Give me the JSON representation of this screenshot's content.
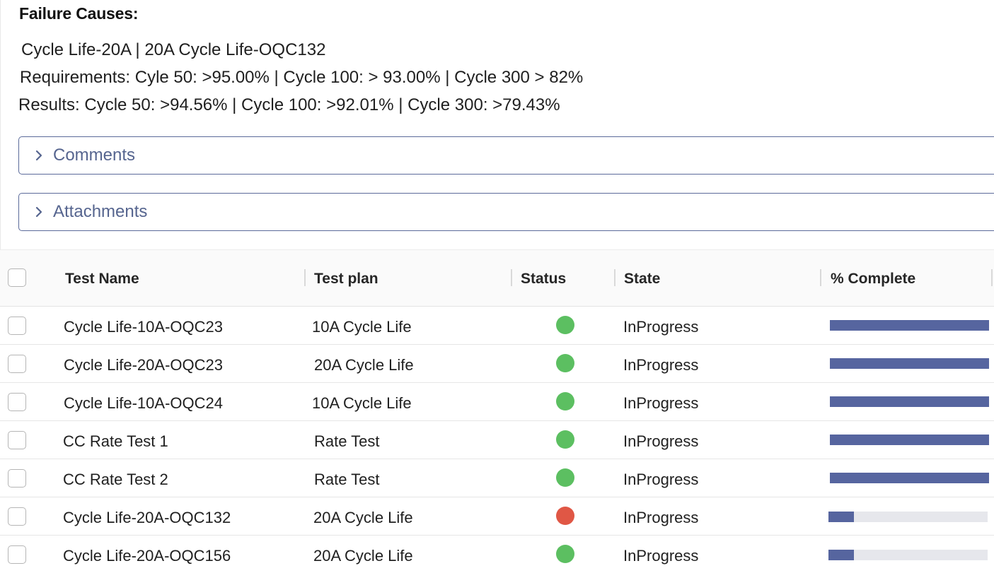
{
  "failure": {
    "heading": "Failure Causes:",
    "line1": "Cycle Life-20A | 20A Cycle Life-OQC132",
    "line2": "Requirements: Cyle 50: >95.00% | Cycle 100: > 93.00% | Cycle 300 > 82%",
    "line3": "Results: Cycle 50: >94.56% | Cycle 100: >92.01% | Cycle 300: >79.43%"
  },
  "accordions": {
    "comments": "Comments",
    "attachments": "Attachments"
  },
  "colors": {
    "status_green": "#5cbf61",
    "status_red": "#e05745",
    "progress_fill": "#56659f",
    "accent": "#56658f"
  },
  "table": {
    "headers": {
      "test_name": "Test Name",
      "test_plan": "Test plan",
      "status": "Status",
      "state": "State",
      "complete": "% Complete"
    },
    "rows": [
      {
        "test_name": "Cycle Life-10A-OQC23",
        "test_plan": "10A Cycle Life",
        "status": "green",
        "state": "InProgress",
        "percent_complete": 100
      },
      {
        "test_name": "Cycle Life-20A-OQC23",
        "test_plan": "20A Cycle Life",
        "status": "green",
        "state": "InProgress",
        "percent_complete": 100
      },
      {
        "test_name": "Cycle Life-10A-OQC24",
        "test_plan": "10A Cycle Life",
        "status": "green",
        "state": "InProgress",
        "percent_complete": 100
      },
      {
        "test_name": "CC Rate Test 1",
        "test_plan": "Rate Test",
        "status": "green",
        "state": "InProgress",
        "percent_complete": 100
      },
      {
        "test_name": "CC Rate Test 2",
        "test_plan": "Rate Test",
        "status": "green",
        "state": "InProgress",
        "percent_complete": 100
      },
      {
        "test_name": "Cycle Life-20A-OQC132",
        "test_plan": "20A Cycle Life",
        "status": "red",
        "state": "InProgress",
        "percent_complete": 16
      },
      {
        "test_name": "Cycle Life-20A-OQC156",
        "test_plan": "20A Cycle Life",
        "status": "green",
        "state": "InProgress",
        "percent_complete": 16
      }
    ]
  }
}
